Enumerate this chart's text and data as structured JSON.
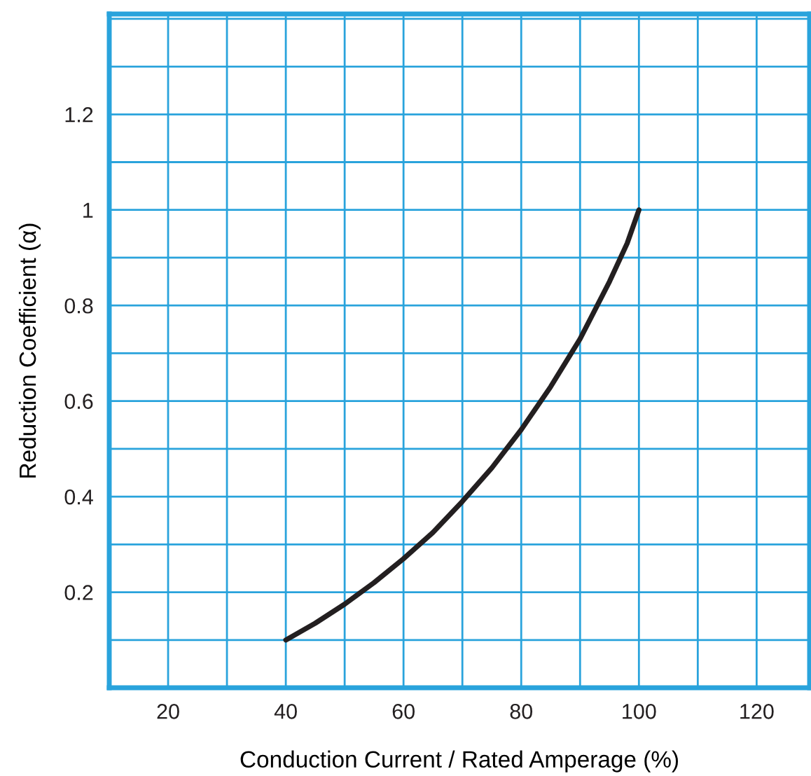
{
  "chart_data": {
    "type": "line",
    "xlabel": "Conduction Current / Rated Amperage (%)",
    "ylabel": "Reduction Coefficient (α)",
    "x": [
      40,
      45,
      50,
      55,
      60,
      65,
      70,
      75,
      80,
      85,
      90,
      95,
      98,
      100
    ],
    "series": [
      {
        "color": "#231f20",
        "values": [
          0.1,
          0.135,
          0.175,
          0.22,
          0.27,
          0.325,
          0.39,
          0.46,
          0.54,
          0.63,
          0.73,
          0.85,
          0.93,
          1.0
        ]
      }
    ],
    "xlim": [
      10,
      129
    ],
    "ylim": [
      0,
      1.41
    ],
    "xticks": [
      {
        "value": 10,
        "label": null
      },
      20,
      {
        "value": 30,
        "label": null
      },
      40,
      {
        "value": 50,
        "label": null
      },
      60,
      {
        "value": 70,
        "label": null
      },
      80,
      {
        "value": 90,
        "label": null
      },
      100,
      {
        "value": 110,
        "label": null
      },
      120
    ],
    "yticks": [
      {
        "value": 0.1,
        "label": null
      },
      0.2,
      {
        "value": 0.3,
        "label": null
      },
      0.4,
      {
        "value": 0.5,
        "label": null
      },
      0.6,
      {
        "value": 0.7,
        "label": null
      },
      0.8,
      {
        "value": 0.9,
        "label": null
      },
      1,
      {
        "value": 1.1,
        "label": null
      },
      1.2,
      {
        "value": 1.3,
        "label": null
      },
      {
        "value": 1.4,
        "label": null
      }
    ],
    "grid": true,
    "marker": "none",
    "line_style": "solid"
  }
}
